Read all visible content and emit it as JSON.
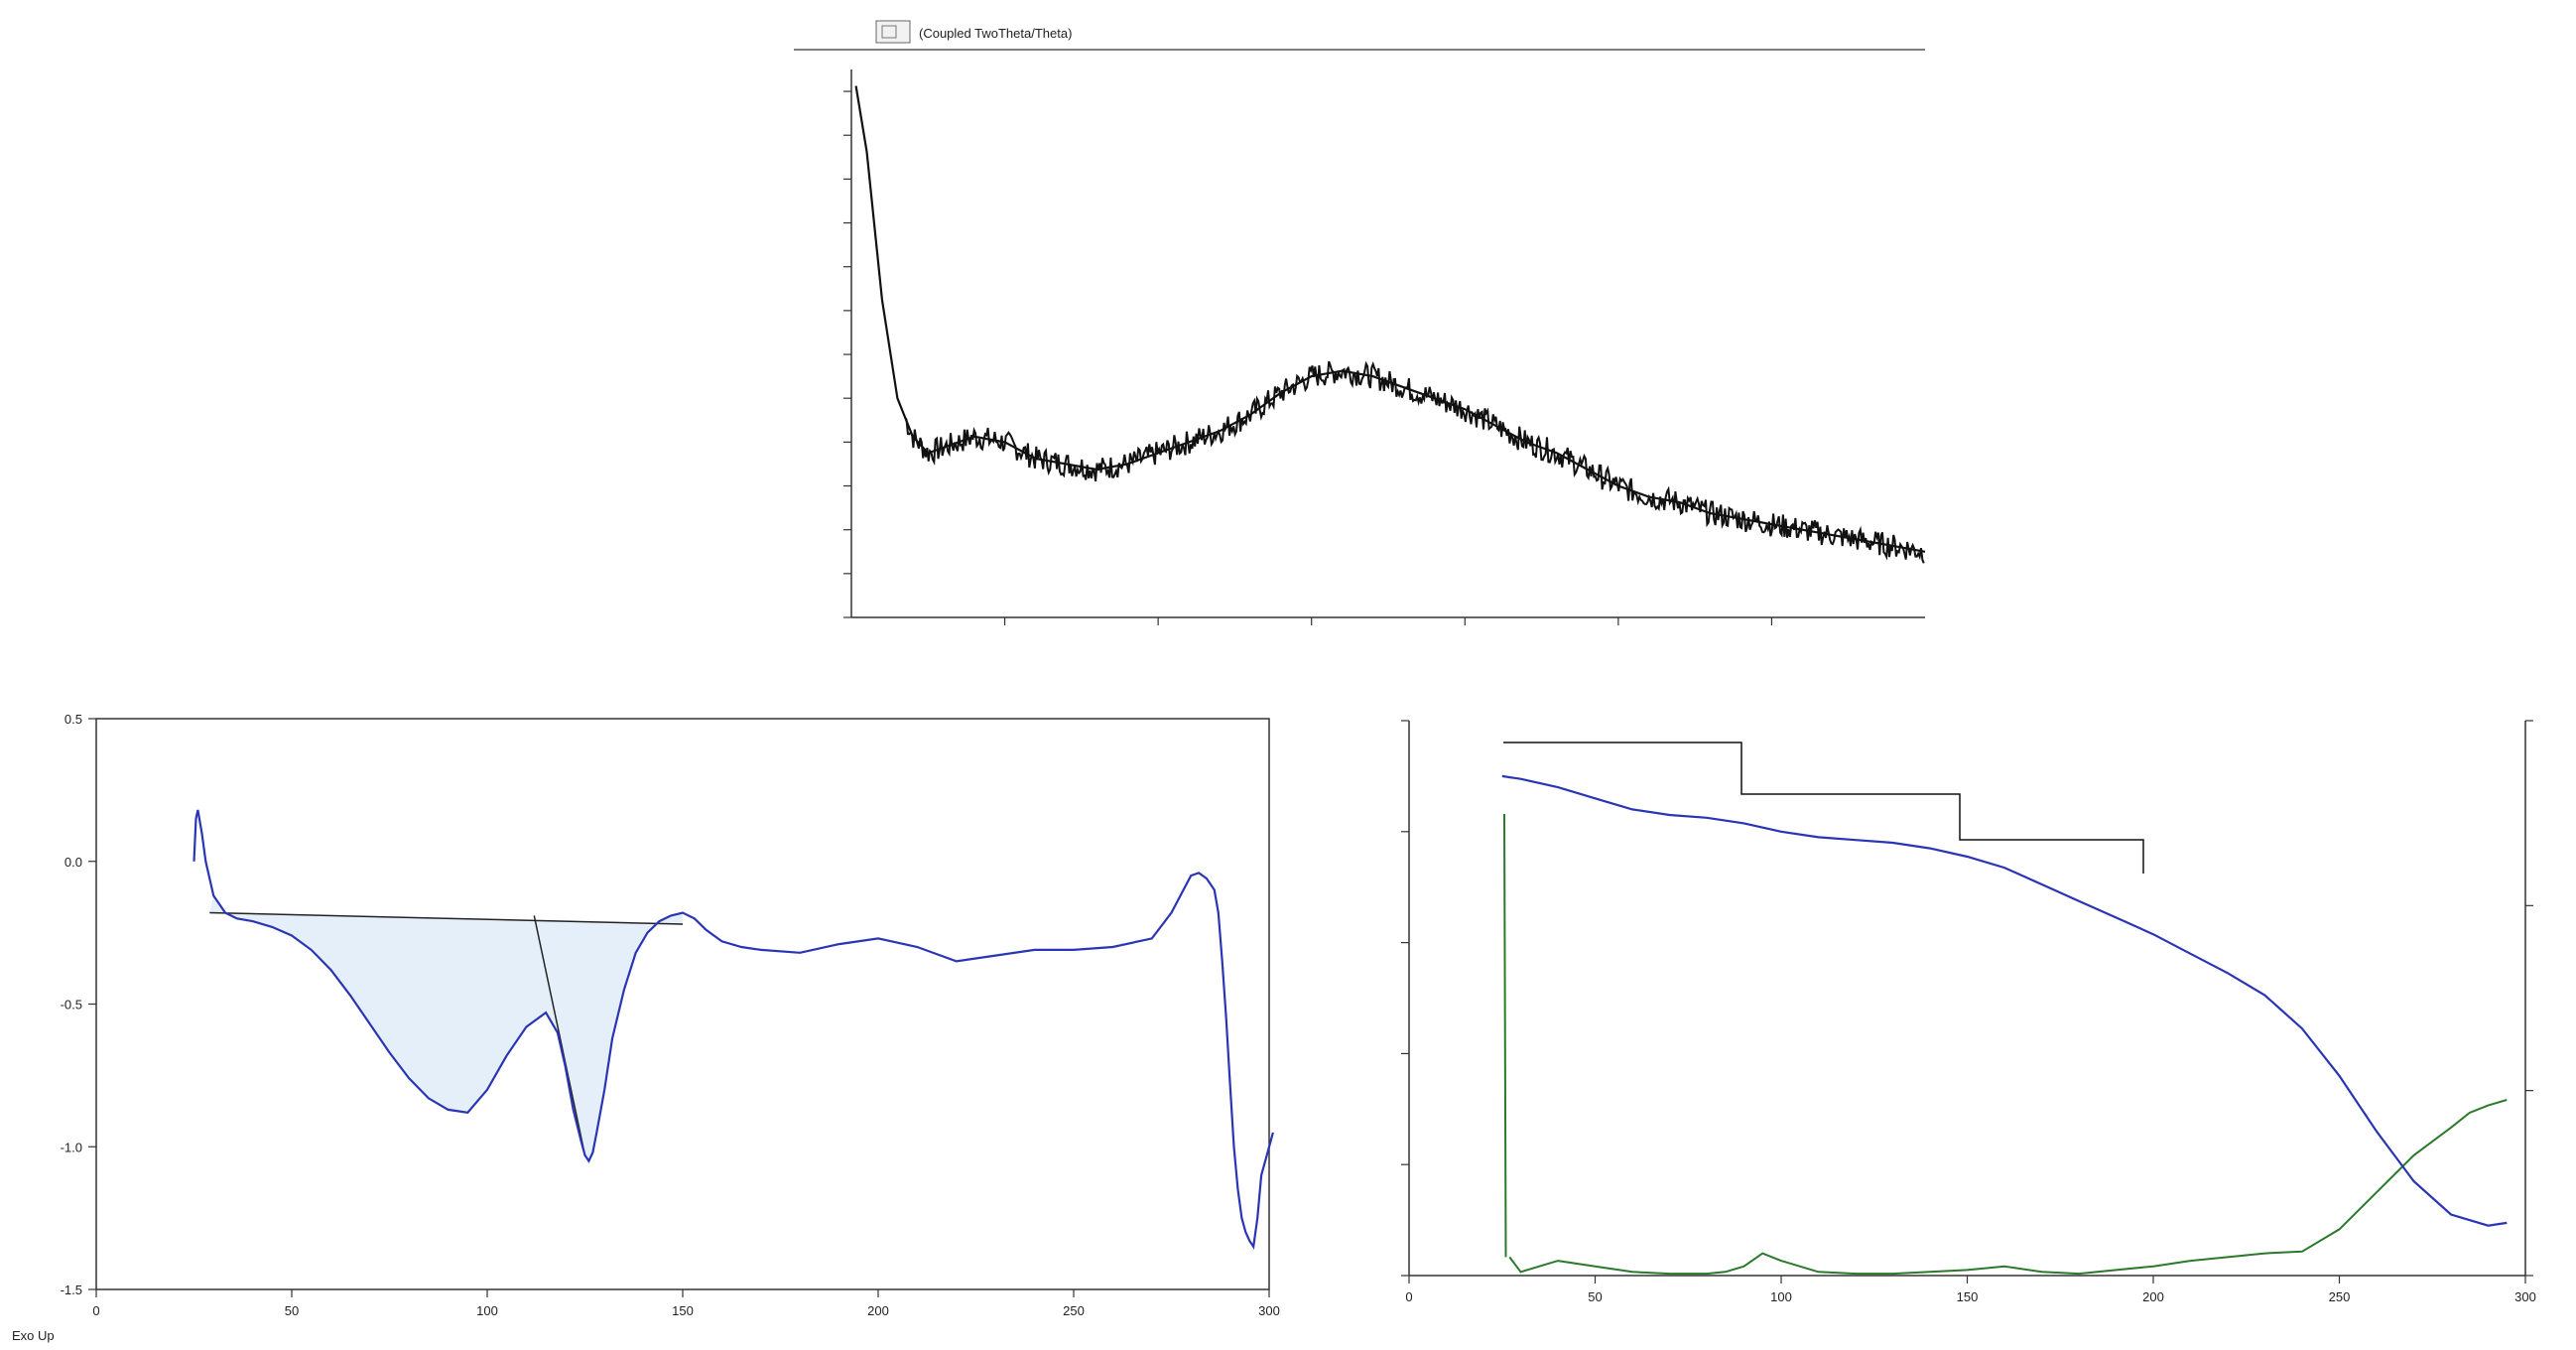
{
  "xrd": {
    "title": "(Coupled TwoTheta/Theta)",
    "legend": "",
    "xlabel": "",
    "ylabel": "",
    "chart_data": {
      "type": "line",
      "title": "(Coupled TwoTheta/Theta)",
      "xlim": [
        0,
        70
      ],
      "ylim": [
        0,
        100
      ],
      "x_ticks": [],
      "x": [
        0.3,
        1,
        2,
        3,
        4,
        5,
        6,
        8,
        10,
        12,
        14,
        16,
        18,
        20,
        22,
        24,
        26,
        28,
        30,
        32,
        34,
        36,
        38,
        40,
        42,
        44,
        46,
        48,
        50,
        52,
        54,
        56,
        58,
        60,
        62,
        64,
        66,
        68,
        70
      ],
      "y": [
        97,
        85,
        58,
        40,
        33,
        30,
        31,
        33,
        32,
        29,
        28,
        27,
        28,
        30,
        32,
        34,
        37,
        41,
        44,
        45,
        44,
        42,
        40,
        38,
        35,
        32,
        30,
        27,
        24,
        22,
        21,
        19,
        18,
        17,
        16,
        15,
        14,
        13,
        12
      ],
      "series_color": "#111111"
    }
  },
  "dsc": {
    "xlabel": "",
    "ylabel": "",
    "legend": "",
    "ann1": "",
    "ann2": "",
    "ann3": "",
    "xunit_note": "Exo Up",
    "chart_data": {
      "type": "line",
      "xlim": [
        0,
        300
      ],
      "ylim": [
        -1.5,
        0.5
      ],
      "y_ticks": [
        0.5,
        0.0,
        -0.5,
        -1.0,
        -1.5
      ],
      "y_tick_labels": [
        "0.5",
        "0.0",
        "-0.5",
        "-1.0",
        "-1.5"
      ],
      "x_ticks": [
        0,
        50,
        100,
        150,
        200,
        250,
        300
      ],
      "x_tick_labels": [
        "0",
        "50",
        "100",
        "150",
        "200",
        "250",
        "300"
      ],
      "x": [
        25,
        25.5,
        26,
        27,
        28,
        30,
        33,
        36,
        40,
        45,
        50,
        55,
        60,
        65,
        70,
        75,
        80,
        85,
        90,
        95,
        100,
        105,
        110,
        115,
        118,
        120,
        122,
        124,
        125,
        126,
        127,
        128,
        130,
        132,
        135,
        138,
        141,
        144,
        147,
        150,
        153,
        156,
        160,
        165,
        170,
        180,
        190,
        200,
        210,
        220,
        230,
        240,
        250,
        260,
        270,
        275,
        280,
        282,
        284,
        286,
        287,
        288,
        289,
        290,
        291,
        292,
        293,
        294,
        295,
        296,
        297,
        298,
        299,
        300,
        301
      ],
      "y": [
        0.0,
        0.15,
        0.18,
        0.1,
        0.0,
        -0.12,
        -0.18,
        -0.2,
        -0.21,
        -0.23,
        -0.26,
        -0.31,
        -0.38,
        -0.47,
        -0.57,
        -0.67,
        -0.76,
        -0.83,
        -0.87,
        -0.88,
        -0.8,
        -0.68,
        -0.58,
        -0.53,
        -0.6,
        -0.72,
        -0.87,
        -0.98,
        -1.03,
        -1.05,
        -1.02,
        -0.95,
        -0.8,
        -0.62,
        -0.45,
        -0.32,
        -0.25,
        -0.21,
        -0.19,
        -0.18,
        -0.2,
        -0.24,
        -0.28,
        -0.3,
        -0.31,
        -0.32,
        -0.29,
        -0.27,
        -0.3,
        -0.35,
        -0.33,
        -0.31,
        -0.31,
        -0.3,
        -0.27,
        -0.18,
        -0.05,
        -0.04,
        -0.06,
        -0.1,
        -0.18,
        -0.35,
        -0.55,
        -0.78,
        -1.0,
        -1.15,
        -1.25,
        -1.3,
        -1.33,
        -1.35,
        -1.25,
        -1.1,
        -1.05,
        -1.0,
        -0.95
      ],
      "baseline": {
        "x": [
          29,
          150
        ],
        "y": [
          -0.18,
          -0.22
        ]
      },
      "series_color": "#2a35b5"
    }
  },
  "tga": {
    "xlabel": "",
    "ylabel": "",
    "y2label": "",
    "legend1": "",
    "legend2": "",
    "steps": [
      {
        "line1": "",
        "line2": "",
        "line3": ""
      },
      {
        "line1": "",
        "line2": "",
        "line3": ""
      },
      {
        "line1": "",
        "line2": "",
        "line3": "",
        "line4": ""
      },
      {
        "line1": "",
        "line2": "",
        "line3": ""
      }
    ],
    "chart_data": {
      "type": "line",
      "xlim": [
        0,
        300
      ],
      "ylim": [
        10,
        20
      ],
      "x_ticks": [
        0,
        50,
        100,
        150,
        200,
        250,
        300
      ],
      "x_tick_labels": [
        "0",
        "50",
        "100",
        "150",
        "200",
        "250",
        "300"
      ],
      "series": [
        {
          "name": "",
          "axis": "left",
          "color": "#2a35b5",
          "x": [
            25,
            30,
            40,
            50,
            60,
            70,
            80,
            90,
            100,
            110,
            120,
            130,
            140,
            150,
            160,
            170,
            180,
            190,
            200,
            210,
            220,
            230,
            240,
            250,
            260,
            270,
            280,
            290,
            295
          ],
          "y": [
            19.0,
            18.95,
            18.8,
            18.6,
            18.4,
            18.3,
            18.25,
            18.15,
            18.0,
            17.9,
            17.85,
            17.8,
            17.7,
            17.55,
            17.35,
            17.05,
            16.75,
            16.45,
            16.15,
            15.8,
            15.45,
            15.05,
            14.45,
            13.6,
            12.6,
            11.7,
            11.1,
            10.9,
            10.95
          ]
        },
        {
          "name": "",
          "axis": "right",
          "color": "#2b7a2b",
          "x": [
            25,
            26,
            27,
            30,
            35,
            40,
            50,
            60,
            70,
            80,
            85,
            90,
            95,
            100,
            110,
            120,
            130,
            140,
            150,
            160,
            170,
            180,
            190,
            200,
            210,
            220,
            230,
            240,
            250,
            260,
            270,
            280,
            285,
            290,
            295
          ],
          "y": [
            0.9,
            0.9,
            0.1,
            0.02,
            0.05,
            0.08,
            0.05,
            0.02,
            0.01,
            0.01,
            0.02,
            0.05,
            0.12,
            0.08,
            0.02,
            0.01,
            0.01,
            0.02,
            0.03,
            0.05,
            0.02,
            0.01,
            0.03,
            0.05,
            0.08,
            0.1,
            0.12,
            0.13,
            0.25,
            0.45,
            0.65,
            0.8,
            0.88,
            0.92,
            0.95
          ]
        }
      ]
    }
  }
}
